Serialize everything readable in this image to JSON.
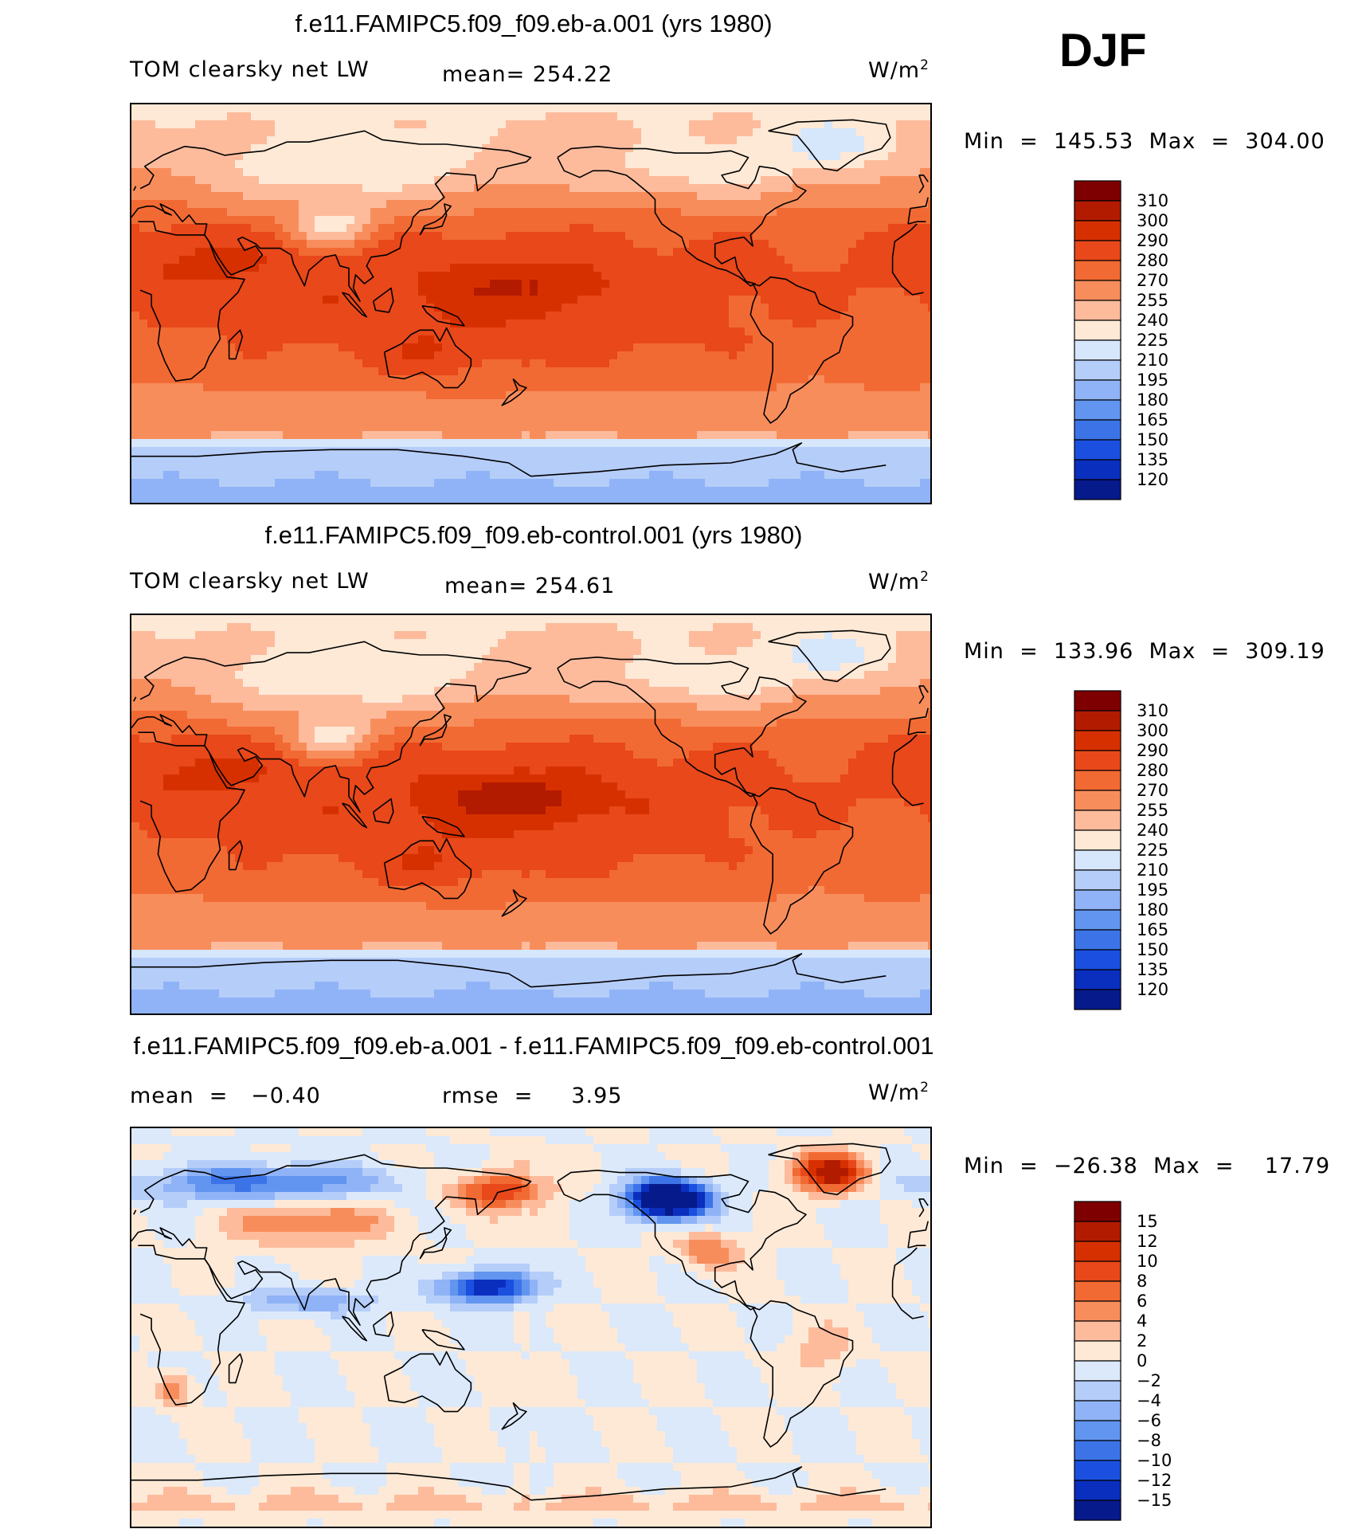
{
  "season": "DJF",
  "chart_data": [
    {
      "type": "heatmap",
      "title": "f.e11.FAMIPC5.f09_f09.eb-a.001 (yrs 1980)",
      "variable": "TOM clearsky net LW",
      "mean_text": "mean= 254.22",
      "units": "W/m",
      "units_exp": "2",
      "minmax_text": "Min  =  145.53  Max  =  304.00",
      "min": 145.53,
      "max": 304.0,
      "colorbar_levels": [
        "310",
        "300",
        "290",
        "280",
        "270",
        "255",
        "240",
        "225",
        "210",
        "195",
        "180",
        "165",
        "150",
        "135",
        "120"
      ],
      "colorbar_colors": [
        "#7f0000",
        "#b31b00",
        "#d73000",
        "#e8481a",
        "#f26a33",
        "#f88d5c",
        "#fdbb9c",
        "#fde9d6",
        "#d6e6fb",
        "#b5cdf9",
        "#8fb3f6",
        "#6295f0",
        "#3c74e8",
        "#1b4fe0",
        "#0a2fbf",
        "#061a8c"
      ],
      "field": "clim_a"
    },
    {
      "type": "heatmap",
      "title": "f.e11.FAMIPC5.f09_f09.eb-control.001 (yrs 1980)",
      "variable": "TOM clearsky net LW",
      "mean_text": "mean= 254.61",
      "units": "W/m",
      "units_exp": "2",
      "minmax_text": "Min  =  133.96  Max  =  309.19",
      "min": 133.96,
      "max": 309.19,
      "colorbar_levels": [
        "310",
        "300",
        "290",
        "280",
        "270",
        "255",
        "240",
        "225",
        "210",
        "195",
        "180",
        "165",
        "150",
        "135",
        "120"
      ],
      "colorbar_colors": [
        "#7f0000",
        "#b31b00",
        "#d73000",
        "#e8481a",
        "#f26a33",
        "#f88d5c",
        "#fdbb9c",
        "#fde9d6",
        "#d6e6fb",
        "#b5cdf9",
        "#8fb3f6",
        "#6295f0",
        "#3c74e8",
        "#1b4fe0",
        "#0a2fbf",
        "#061a8c"
      ],
      "field": "clim_b"
    },
    {
      "type": "heatmap",
      "title": "f.e11.FAMIPC5.f09_f09.eb-a.001 - f.e11.FAMIPC5.f09_f09.eb-control.001",
      "mean_text": "mean  =   −0.40",
      "rmse_text": "rmse  =     3.95",
      "units": "W/m",
      "units_exp": "2",
      "minmax_text": "Min  =  −26.38  Max  =    17.79",
      "min": -26.38,
      "max": 17.79,
      "colorbar_levels": [
        "15",
        "12",
        "10",
        "8",
        "6",
        "4",
        "2",
        "0",
        "−2",
        "−4",
        "−6",
        "−8",
        "−10",
        "−12",
        "−15"
      ],
      "colorbar_colors": [
        "#7f0000",
        "#b31b00",
        "#d73000",
        "#e8481a",
        "#f26a33",
        "#f88d5c",
        "#fdbb9c",
        "#fde9d6",
        "#dbe9fb",
        "#b5cdf9",
        "#8fb3f6",
        "#6295f0",
        "#3c74e8",
        "#1b4fe0",
        "#0a2fbf",
        "#061a8c"
      ],
      "field": "diff"
    }
  ]
}
